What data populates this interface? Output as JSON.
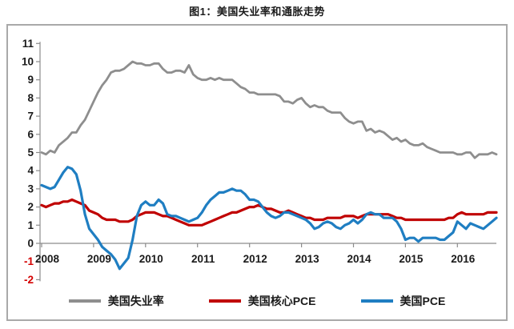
{
  "title": "图1：美国失业率和通胀走势",
  "colors": {
    "background": "#ffffff",
    "box_border": "#a9a9a9",
    "axis": "#8c8c8c",
    "tick_label": "#1a1a1a",
    "negative_tick_label": "#d40000",
    "unemployment": "#8e8e8e",
    "core_pce": "#c00000",
    "pce": "#1f7ec2"
  },
  "chart_data": {
    "type": "line",
    "title": "图1：美国失业率和通胀走势",
    "xlabel": "",
    "ylabel": "",
    "ylim": [
      -2,
      11
    ],
    "y_ticks": [
      11,
      10,
      9,
      8,
      7,
      6,
      5,
      4,
      3,
      2,
      1,
      0,
      -1,
      -2
    ],
    "x_tick_labels": [
      "2008",
      "2009",
      "2010",
      "2011",
      "2012",
      "2013",
      "2014",
      "2015",
      "2016"
    ],
    "x_unit": "monthly, Jan 2008 - Oct 2016",
    "grid": false,
    "legend_position": "bottom",
    "series": [
      {
        "key": "unemployment",
        "name": "美国失业率",
        "color": "#8e8e8e",
        "values": [
          5.0,
          4.9,
          5.1,
          5.0,
          5.4,
          5.6,
          5.8,
          6.1,
          6.1,
          6.5,
          6.8,
          7.3,
          7.8,
          8.3,
          8.7,
          9.0,
          9.4,
          9.5,
          9.5,
          9.6,
          9.8,
          10.0,
          9.9,
          9.9,
          9.8,
          9.8,
          9.9,
          9.9,
          9.6,
          9.4,
          9.4,
          9.5,
          9.5,
          9.4,
          9.8,
          9.3,
          9.1,
          9.0,
          9.0,
          9.1,
          9.0,
          9.1,
          9.0,
          9.0,
          9.0,
          8.8,
          8.6,
          8.5,
          8.3,
          8.3,
          8.2,
          8.2,
          8.2,
          8.2,
          8.2,
          8.1,
          7.8,
          7.8,
          7.7,
          7.9,
          8.0,
          7.7,
          7.5,
          7.6,
          7.5,
          7.5,
          7.3,
          7.2,
          7.2,
          7.2,
          6.9,
          6.7,
          6.6,
          6.7,
          6.7,
          6.2,
          6.3,
          6.1,
          6.2,
          6.1,
          5.9,
          5.7,
          5.8,
          5.6,
          5.7,
          5.5,
          5.4,
          5.4,
          5.5,
          5.3,
          5.2,
          5.1,
          5.0,
          5.0,
          5.0,
          5.0,
          4.9,
          4.9,
          5.0,
          5.0,
          4.7,
          4.9,
          4.9,
          4.9,
          5.0,
          4.9
        ]
      },
      {
        "key": "core-pce",
        "name": "美国核心PCE",
        "color": "#c00000",
        "values": [
          2.1,
          2.0,
          2.1,
          2.2,
          2.2,
          2.3,
          2.3,
          2.4,
          2.3,
          2.2,
          2.1,
          1.8,
          1.7,
          1.6,
          1.4,
          1.3,
          1.3,
          1.3,
          1.2,
          1.2,
          1.2,
          1.3,
          1.5,
          1.6,
          1.7,
          1.7,
          1.7,
          1.6,
          1.5,
          1.5,
          1.4,
          1.3,
          1.2,
          1.1,
          1.0,
          1.0,
          1.0,
          1.0,
          1.1,
          1.2,
          1.3,
          1.4,
          1.5,
          1.6,
          1.7,
          1.7,
          1.8,
          1.9,
          2.0,
          2.0,
          2.1,
          2.0,
          1.9,
          1.9,
          1.8,
          1.7,
          1.7,
          1.8,
          1.7,
          1.6,
          1.5,
          1.4,
          1.4,
          1.3,
          1.3,
          1.3,
          1.4,
          1.4,
          1.4,
          1.4,
          1.5,
          1.5,
          1.5,
          1.4,
          1.5,
          1.6,
          1.6,
          1.6,
          1.6,
          1.6,
          1.6,
          1.5,
          1.4,
          1.4,
          1.3,
          1.3,
          1.3,
          1.3,
          1.3,
          1.3,
          1.3,
          1.3,
          1.3,
          1.3,
          1.4,
          1.4,
          1.6,
          1.7,
          1.6,
          1.6,
          1.6,
          1.6,
          1.6,
          1.7,
          1.7,
          1.7
        ]
      },
      {
        "key": "pce",
        "name": "美国PCE",
        "color": "#1f7ec2",
        "values": [
          3.2,
          3.1,
          3.0,
          3.1,
          3.5,
          3.9,
          4.2,
          4.1,
          3.8,
          2.9,
          1.6,
          0.8,
          0.5,
          0.2,
          -0.2,
          -0.4,
          -0.6,
          -0.9,
          -1.4,
          -1.1,
          -0.8,
          0.2,
          1.5,
          2.1,
          2.3,
          2.1,
          2.1,
          2.4,
          2.2,
          1.6,
          1.5,
          1.5,
          1.4,
          1.3,
          1.2,
          1.3,
          1.4,
          1.7,
          2.1,
          2.4,
          2.6,
          2.8,
          2.8,
          2.9,
          3.0,
          2.9,
          2.9,
          2.7,
          2.4,
          2.4,
          2.3,
          2.0,
          1.7,
          1.5,
          1.4,
          1.5,
          1.7,
          1.7,
          1.6,
          1.5,
          1.4,
          1.3,
          1.1,
          0.8,
          0.9,
          1.1,
          1.2,
          1.1,
          0.9,
          0.8,
          1.0,
          1.1,
          1.3,
          1.1,
          1.3,
          1.6,
          1.7,
          1.6,
          1.6,
          1.4,
          1.4,
          1.4,
          1.2,
          0.8,
          0.2,
          0.3,
          0.3,
          0.1,
          0.3,
          0.3,
          0.3,
          0.3,
          0.2,
          0.2,
          0.4,
          0.6,
          1.2,
          1.0,
          0.8,
          1.1,
          1.0,
          0.9,
          0.8,
          1.0,
          1.2,
          1.4
        ]
      }
    ]
  }
}
